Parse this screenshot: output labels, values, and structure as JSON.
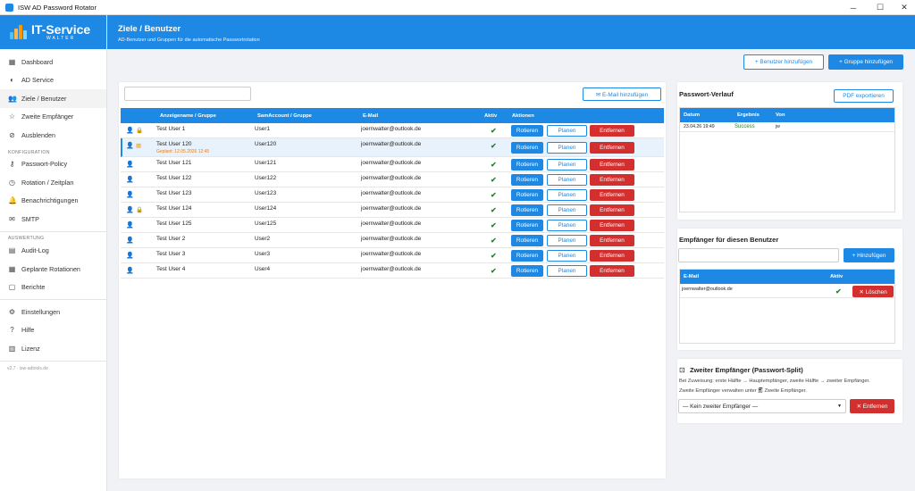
{
  "window": {
    "title": "ISW AD Password Rotator",
    "minimize": "─",
    "maximize": "☐",
    "close": "✕"
  },
  "logo": {
    "text": "IT-Service",
    "sub": "WALTER"
  },
  "sidebar": {
    "items": [
      {
        "label": "Dashboard",
        "icon": "▦"
      },
      {
        "label": "AD Service",
        "icon": "◐"
      },
      {
        "label": "Ziele / Benutzer",
        "icon": "👥"
      },
      {
        "label": "Zweite Empfänger",
        "icon": "☆"
      },
      {
        "label": "Ausblenden",
        "icon": "⊘"
      }
    ],
    "section_konfig": "KONFIGURATION",
    "konfig_items": [
      {
        "label": "Passwort-Policy",
        "icon": "⚷"
      },
      {
        "label": "Rotation / Zeitplan",
        "icon": "◷"
      },
      {
        "label": "Benachrichtigungen",
        "icon": "🔔"
      },
      {
        "label": "SMTP",
        "icon": "✉"
      }
    ],
    "section_ausw": "AUSWERTUNG",
    "ausw_items": [
      {
        "label": "Audit-Log",
        "icon": "▤"
      },
      {
        "label": "Geplante Rotationen",
        "icon": "▦"
      },
      {
        "label": "Berichte",
        "icon": "▢"
      }
    ],
    "bottom_items": [
      {
        "label": "Einstellungen",
        "icon": "⚙"
      },
      {
        "label": "Hilfe",
        "icon": "?"
      },
      {
        "label": "Lizenz",
        "icon": "▥"
      }
    ],
    "version": "v2.7 · isw-adtools.de"
  },
  "header": {
    "title": "Ziele / Benutzer",
    "subtitle": "AD-Benutzer und Gruppen für die automatische Passwortrotation"
  },
  "toolbar": {
    "add_user": "+ Benutzer hinzufügen",
    "add_group": "+ Gruppe hinzufügen"
  },
  "targets": {
    "search_placeholder": "",
    "email_add": "✉ E-Mail hinzufügen",
    "columns": [
      "Anzeigename / Gruppe",
      "SamAccount / Gruppe",
      "E-Mail",
      "Aktiv",
      "Aktionen"
    ],
    "buttons": {
      "rotate": "Rotieren",
      "plan": "Planen",
      "remove": "Entfernen"
    },
    "rows": [
      {
        "name": "Test User 1",
        "sam": "User1",
        "email": "joernwalter@outlook.de",
        "extra": "lock"
      },
      {
        "name": "Test User 120",
        "sam": "User120",
        "email": "joernwalter@outlook.de",
        "extra": "cal",
        "scheduled": "Geplant: 12.05.2026 12:45"
      },
      {
        "name": "Test User 121",
        "sam": "User121",
        "email": "joernwalter@outlook.de",
        "extra": ""
      },
      {
        "name": "Test User 122",
        "sam": "User122",
        "email": "joernwalter@outlook.de",
        "extra": ""
      },
      {
        "name": "Test User 123",
        "sam": "User123",
        "email": "joernwalter@outlook.de",
        "extra": ""
      },
      {
        "name": "Test User 124",
        "sam": "User124",
        "email": "joernwalter@outlook.de",
        "extra": "lock"
      },
      {
        "name": "Test User 125",
        "sam": "User125",
        "email": "joernwalter@outlook.de",
        "extra": ""
      },
      {
        "name": "Test User 2",
        "sam": "User2",
        "email": "joernwalter@outlook.de",
        "extra": ""
      },
      {
        "name": "Test User 3",
        "sam": "User3",
        "email": "joernwalter@outlook.de",
        "extra": ""
      },
      {
        "name": "Test User 4",
        "sam": "User4",
        "email": "joernwalter@outlook.de",
        "extra": ""
      }
    ]
  },
  "history": {
    "title": "Passwort-Verlauf",
    "export": "PDF exportieren",
    "columns": [
      "Datum",
      "Ergebnis",
      "Von"
    ],
    "rows": [
      {
        "date": "23.04.26 19:49",
        "result": "Success",
        "by": "jw"
      }
    ]
  },
  "recipients": {
    "title": "Empfänger für diesen Benutzer",
    "add": "+ Hinzufügen",
    "columns": [
      "E-Mail",
      "Aktiv"
    ],
    "rows": [
      {
        "email": "joernwalter@outlook.de",
        "delete": "✕ Löschen"
      }
    ]
  },
  "second": {
    "title": "Zweiter Empfänger (Passwort-Split)",
    "line1": "Bei Zuweisung: erste Hälfte → Hauptempfänger, zweite Hälfte → zweiter Empfänger.",
    "line2": "Zweite Empfänger verwalten unter 🗐 Zweite Empfänger.",
    "select": "— Kein zweiter Empfänger —",
    "remove": "✕ Entfernen"
  },
  "colors": {
    "accent": "#1e88e5",
    "danger": "#d32f2f",
    "success": "#2e7d32",
    "warning": "#f57c00"
  }
}
